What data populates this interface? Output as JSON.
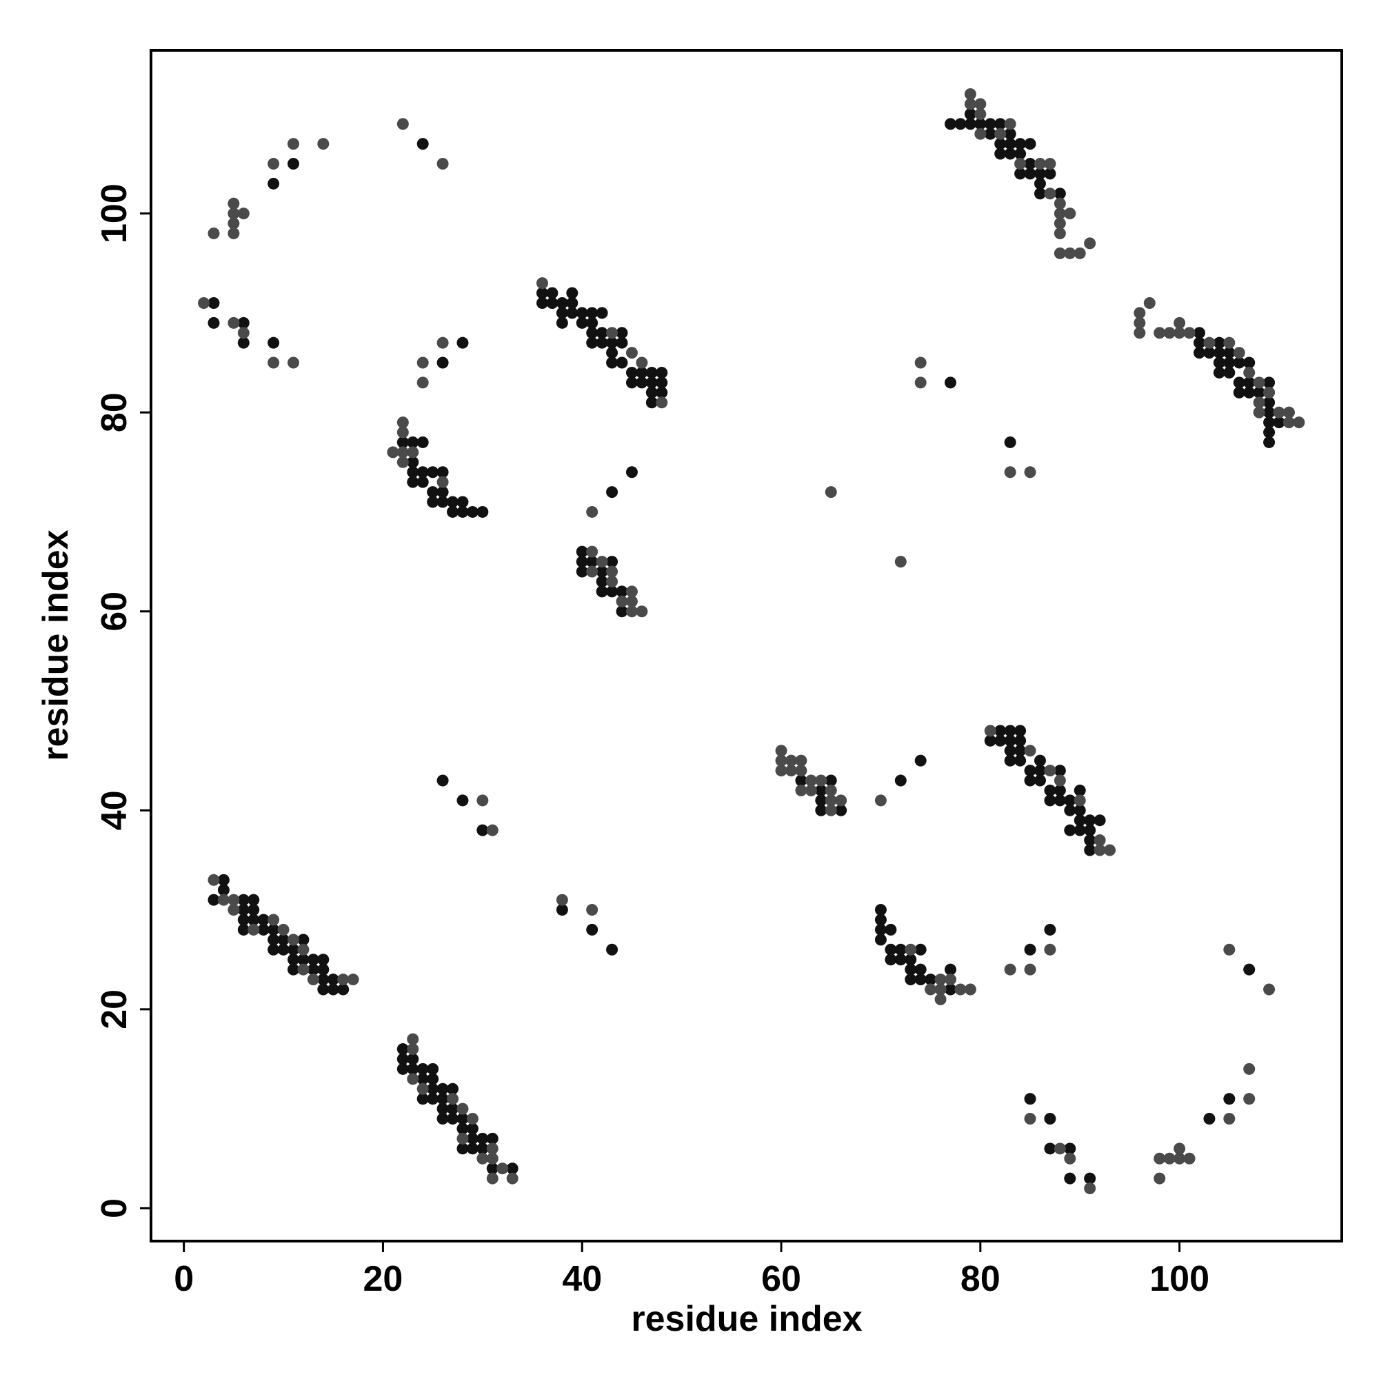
{
  "chart_data": {
    "type": "scatter",
    "xlabel": "residue index",
    "ylabel": "residue index",
    "xlim": [
      -3.3,
      116.3
    ],
    "ylim": [
      -3.3,
      116.4
    ],
    "xticks": [
      0,
      20,
      40,
      60,
      80,
      100
    ],
    "yticks": [
      0,
      20,
      40,
      60,
      80,
      100
    ],
    "series": [
      {
        "color": "#111111",
        "x": [
          4,
          4,
          3,
          6,
          6,
          6,
          6,
          7,
          7,
          7,
          8,
          8,
          9,
          9,
          9,
          10,
          10,
          11,
          11,
          11,
          12,
          12,
          13,
          13,
          14,
          14,
          14,
          14,
          15,
          15,
          16,
          22,
          22,
          22,
          23,
          23,
          24,
          24,
          24,
          25,
          25,
          25,
          25,
          26,
          26,
          26,
          26,
          27,
          27,
          27,
          28,
          28,
          28,
          29,
          29,
          29,
          30,
          30,
          31,
          31,
          33,
          22,
          23,
          23,
          23,
          23,
          24,
          24,
          24,
          25,
          25,
          25,
          26,
          26,
          26,
          27,
          27,
          28,
          28,
          29,
          30,
          36,
          36,
          37,
          37,
          38,
          38,
          38,
          39,
          39,
          39,
          40,
          40,
          41,
          41,
          41,
          41,
          42,
          42,
          42,
          43,
          43,
          43,
          44,
          44,
          44,
          45,
          45,
          46,
          46,
          47,
          47,
          47,
          47,
          48,
          48,
          48,
          40,
          40,
          40,
          41,
          42,
          42,
          42,
          43,
          43,
          44,
          44,
          43,
          45,
          9,
          11,
          24,
          3,
          3,
          6,
          6,
          9,
          26,
          28,
          77,
          78,
          79,
          79,
          80,
          81,
          81,
          82,
          82,
          82,
          83,
          83,
          83,
          84,
          84,
          84,
          85,
          85,
          85,
          86,
          86,
          86,
          87,
          88,
          102,
          102,
          102,
          103,
          104,
          104,
          104,
          104,
          105,
          105,
          105,
          106,
          106,
          106,
          107,
          107,
          107,
          108,
          109,
          109,
          109,
          109,
          109,
          109,
          110,
          77,
          83,
          62,
          64,
          64,
          64,
          65,
          66,
          72,
          74,
          81,
          82,
          82,
          83,
          83,
          83,
          83,
          84,
          84,
          84,
          84,
          85,
          85,
          86,
          86,
          86,
          87,
          87,
          88,
          88,
          88,
          89,
          89,
          89,
          90,
          90,
          90,
          90,
          91,
          91,
          91,
          91,
          92,
          70,
          70,
          70,
          70,
          71,
          71,
          71,
          72,
          72,
          73,
          73,
          73,
          74,
          74,
          74,
          75,
          77,
          77,
          26,
          28,
          30,
          38,
          41,
          43,
          85,
          87,
          107,
          85,
          87,
          87,
          89,
          89,
          91,
          103,
          105
        ],
        "y": [
          33,
          32,
          31,
          31,
          30,
          29,
          28,
          31,
          30,
          29,
          29,
          28,
          28,
          27,
          26,
          27,
          26,
          26,
          25,
          24,
          27,
          25,
          25,
          24,
          25,
          24,
          23,
          22,
          23,
          22,
          22,
          16,
          15,
          14,
          15,
          14,
          14,
          13,
          11,
          14,
          13,
          12,
          11,
          12,
          11,
          10,
          9,
          12,
          10,
          9,
          9,
          8,
          6,
          8,
          7,
          6,
          7,
          6,
          7,
          4,
          4,
          77,
          77,
          75,
          74,
          73,
          77,
          74,
          73,
          74,
          72,
          71,
          74,
          72,
          71,
          71,
          70,
          71,
          70,
          70,
          70,
          92,
          91,
          92,
          91,
          91,
          90,
          89,
          92,
          91,
          90,
          90,
          89,
          90,
          89,
          88,
          87,
          90,
          88,
          87,
          87,
          86,
          85,
          88,
          87,
          85,
          84,
          83,
          84,
          83,
          84,
          83,
          82,
          81,
          84,
          83,
          82,
          66,
          65,
          64,
          65,
          64,
          63,
          62,
          65,
          62,
          62,
          60,
          72,
          74,
          103,
          105,
          107,
          91,
          89,
          89,
          87,
          87,
          85,
          87,
          109,
          109,
          110,
          109,
          109,
          109,
          108,
          109,
          107,
          106,
          108,
          107,
          106,
          107,
          106,
          104,
          107,
          105,
          104,
          104,
          103,
          102,
          104,
          102,
          88,
          87,
          86,
          86,
          87,
          86,
          85,
          84,
          86,
          85,
          84,
          85,
          83,
          82,
          85,
          83,
          82,
          82,
          83,
          81,
          80,
          79,
          78,
          77,
          79,
          83,
          77,
          43,
          42,
          41,
          40,
          43,
          40,
          43,
          45,
          47,
          48,
          47,
          48,
          47,
          46,
          45,
          48,
          47,
          46,
          45,
          44,
          43,
          45,
          44,
          43,
          42,
          41,
          44,
          42,
          41,
          41,
          40,
          38,
          42,
          40,
          39,
          38,
          39,
          38,
          37,
          36,
          39,
          30,
          29,
          28,
          27,
          28,
          26,
          25,
          26,
          25,
          25,
          24,
          23,
          26,
          24,
          23,
          23,
          24,
          22,
          43,
          41,
          38,
          30,
          28,
          26,
          26,
          28,
          24,
          11,
          9,
          6,
          6,
          3,
          3,
          9,
          11
        ]
      },
      {
        "color": "#4a4a4a",
        "x": [
          3,
          4,
          5,
          5,
          7,
          9,
          10,
          11,
          12,
          12,
          13,
          16,
          17,
          23,
          23,
          23,
          24,
          27,
          28,
          28,
          29,
          30,
          31,
          31,
          31,
          32,
          33,
          21,
          22,
          22,
          22,
          22,
          23,
          26,
          36,
          43,
          45,
          46,
          48,
          41,
          41,
          42,
          43,
          43,
          44,
          45,
          45,
          45,
          46,
          41,
          65,
          72,
          3,
          5,
          5,
          5,
          5,
          6,
          9,
          11,
          14,
          22,
          26,
          2,
          5,
          6,
          9,
          11,
          24,
          24,
          26,
          79,
          79,
          80,
          80,
          80,
          82,
          83,
          84,
          86,
          87,
          87,
          88,
          88,
          88,
          88,
          88,
          89,
          89,
          90,
          91,
          96,
          96,
          96,
          97,
          98,
          99,
          100,
          100,
          101,
          103,
          105,
          106,
          107,
          108,
          108,
          108,
          109,
          110,
          111,
          111,
          112,
          74,
          74,
          83,
          85,
          60,
          60,
          60,
          61,
          61,
          62,
          62,
          62,
          63,
          63,
          64,
          65,
          65,
          65,
          66,
          70,
          81,
          85,
          87,
          88,
          90,
          92,
          92,
          93,
          73,
          75,
          76,
          76,
          76,
          77,
          78,
          79,
          30,
          31,
          38,
          41,
          83,
          85,
          87,
          105,
          109,
          85,
          88,
          89,
          91,
          98,
          98,
          99,
          100,
          100,
          101,
          105,
          107,
          107
        ],
        "y": [
          33,
          31,
          31,
          30,
          28,
          29,
          28,
          27,
          26,
          24,
          23,
          23,
          23,
          17,
          16,
          13,
          12,
          11,
          10,
          7,
          9,
          5,
          6,
          5,
          3,
          4,
          3,
          76,
          79,
          78,
          76,
          75,
          76,
          73,
          93,
          88,
          86,
          85,
          81,
          66,
          64,
          65,
          64,
          63,
          61,
          62,
          61,
          60,
          60,
          70,
          72,
          65,
          98,
          101,
          100,
          99,
          98,
          100,
          105,
          107,
          107,
          109,
          105,
          91,
          89,
          88,
          85,
          85,
          85,
          83,
          87,
          112,
          111,
          111,
          110,
          108,
          108,
          109,
          105,
          105,
          105,
          102,
          101,
          100,
          99,
          98,
          96,
          100,
          96,
          96,
          97,
          90,
          89,
          88,
          91,
          88,
          88,
          89,
          88,
          88,
          87,
          87,
          86,
          84,
          83,
          81,
          80,
          82,
          80,
          80,
          79,
          79,
          85,
          83,
          74,
          74,
          46,
          45,
          44,
          45,
          44,
          45,
          44,
          42,
          43,
          42,
          43,
          42,
          41,
          40,
          41,
          41,
          48,
          46,
          44,
          43,
          41,
          37,
          36,
          36,
          26,
          22,
          23,
          22,
          21,
          23,
          22,
          22,
          41,
          38,
          31,
          30,
          24,
          24,
          26,
          26,
          22,
          9,
          6,
          5,
          2,
          5,
          3,
          5,
          6,
          5,
          5,
          9,
          14,
          11
        ]
      }
    ]
  }
}
